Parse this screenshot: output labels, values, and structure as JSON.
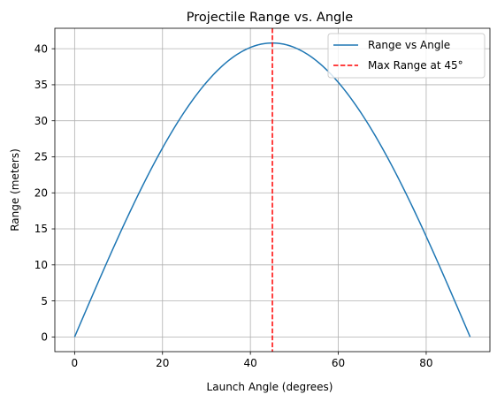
{
  "chart_data": {
    "type": "line",
    "title": "Projectile Range vs. Angle",
    "xlabel": "Launch Angle (degrees)",
    "ylabel": "Range (meters)",
    "xlim": [
      -4.5,
      94.5
    ],
    "ylim": [
      -2.04,
      42.84
    ],
    "xticks": [
      0,
      20,
      40,
      60,
      80
    ],
    "yticks": [
      0,
      5,
      10,
      15,
      20,
      25,
      30,
      35,
      40
    ],
    "xtick_labels": [
      "0",
      "20",
      "40",
      "60",
      "80"
    ],
    "ytick_labels": [
      "0",
      "5",
      "10",
      "15",
      "20",
      "25",
      "30",
      "35",
      "40"
    ],
    "grid": true,
    "legend_position": "top-right",
    "series": [
      {
        "name": "Range vs Angle",
        "color": "#1f77b4",
        "style": "solid",
        "x": [
          0,
          5,
          10,
          15,
          20,
          25,
          30,
          35,
          40,
          45,
          50,
          55,
          60,
          65,
          70,
          75,
          80,
          85,
          90
        ],
        "y": [
          0,
          7.09,
          13.95,
          20.39,
          26.22,
          31.25,
          35.32,
          38.33,
          40.18,
          40.8,
          40.18,
          38.33,
          35.32,
          31.25,
          26.22,
          20.39,
          13.95,
          7.09,
          0
        ]
      }
    ],
    "reference_lines": [
      {
        "name": "Max Range at 45°",
        "color": "#ff0000",
        "style": "dashed",
        "orientation": "vertical",
        "x": 45
      }
    ]
  }
}
